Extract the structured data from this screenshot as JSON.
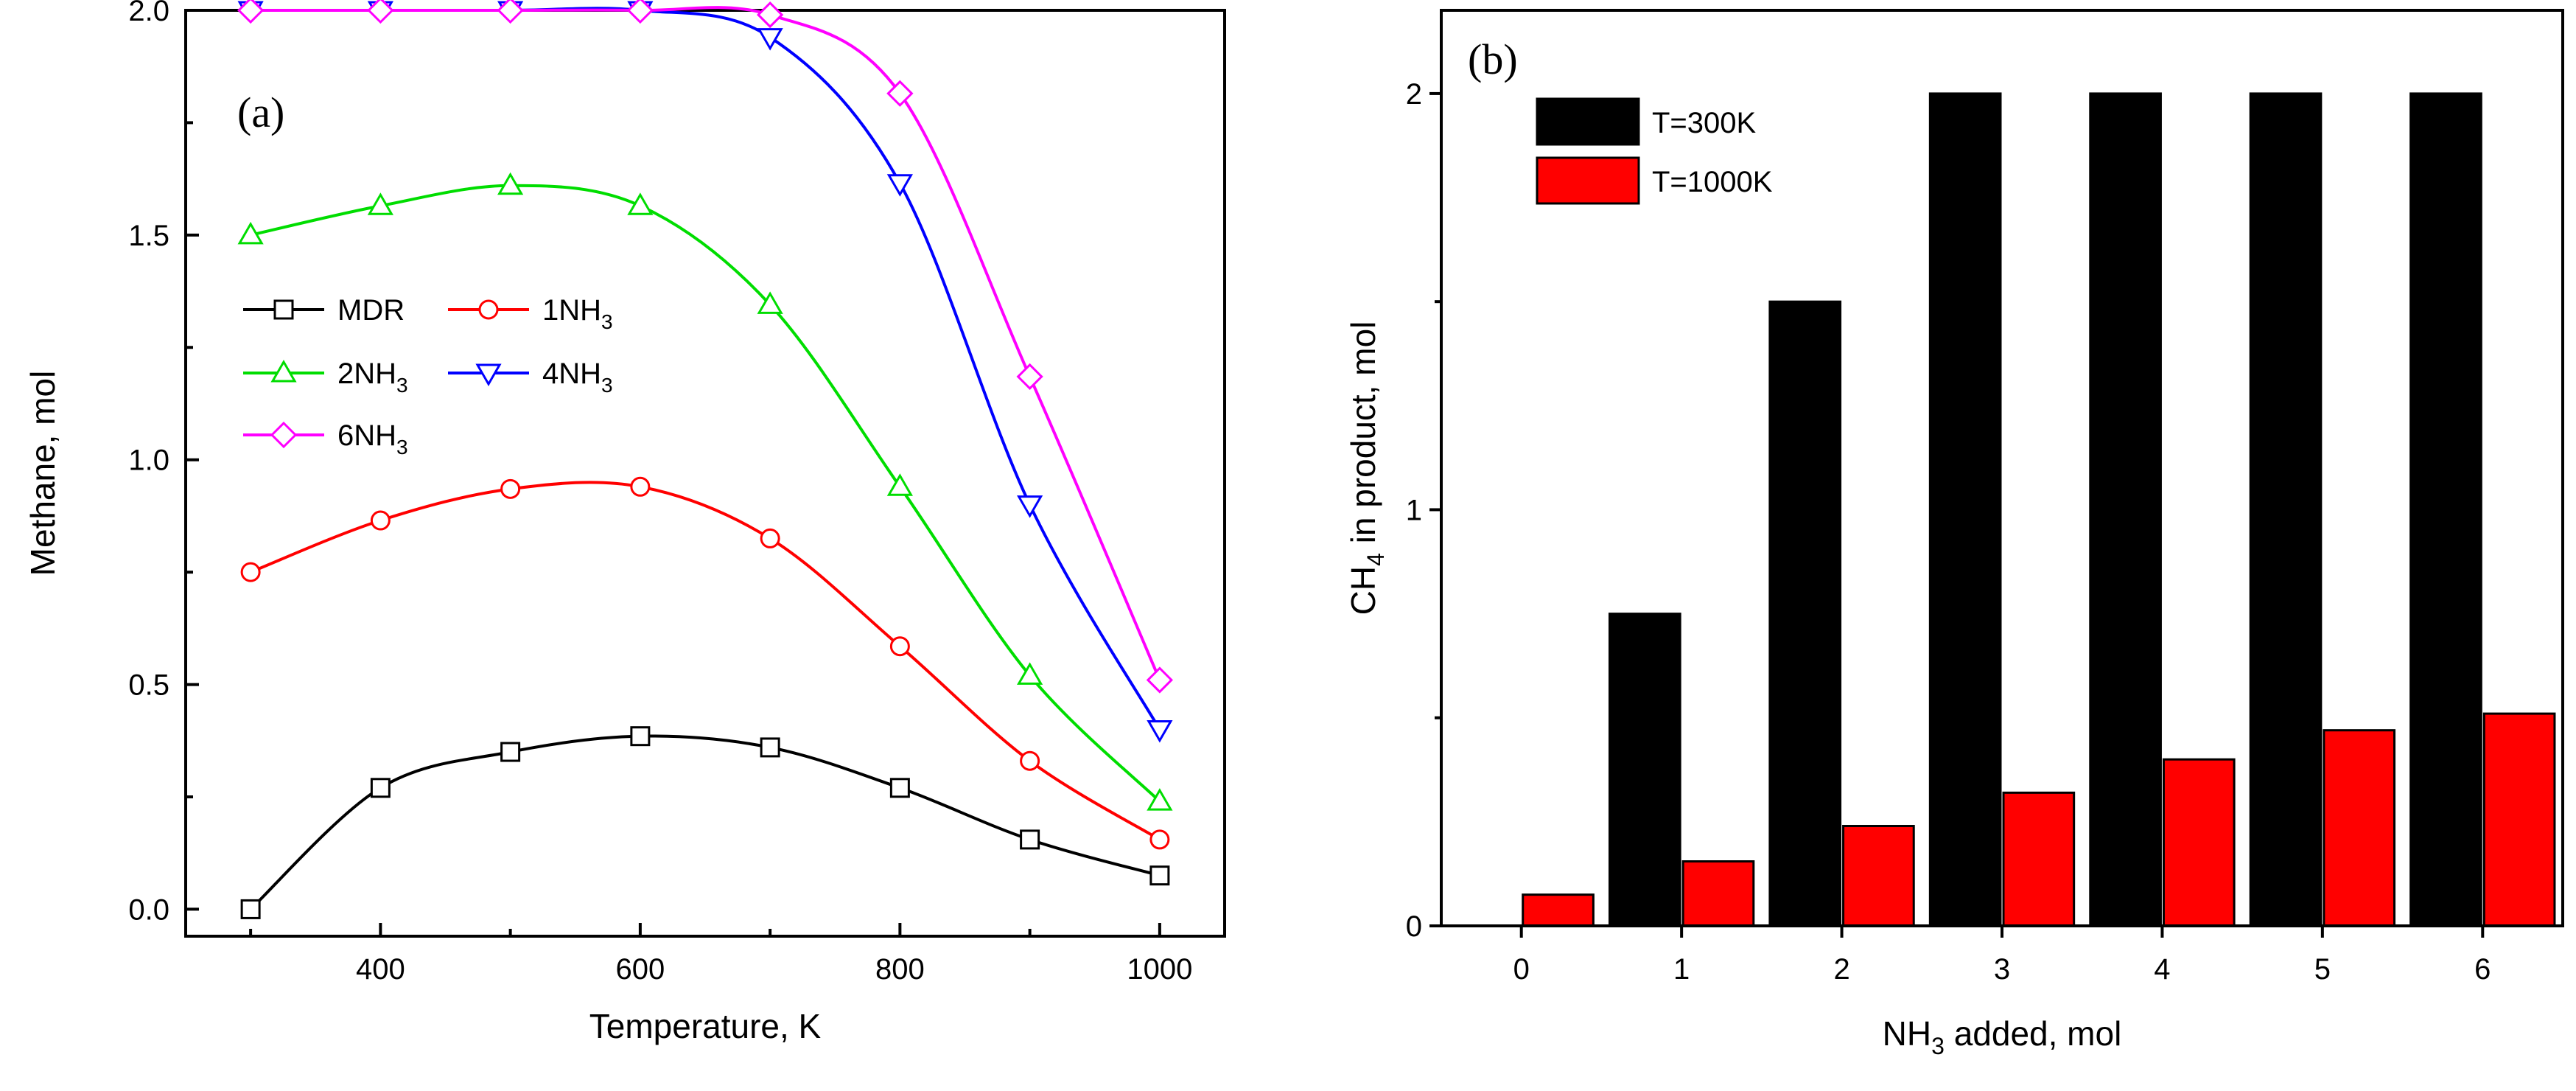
{
  "chart_data": [
    {
      "panel_label": "(a)",
      "type": "line",
      "xlabel": "Temperature, K",
      "ylabel": "Methane, mol",
      "xlim": [
        250,
        1050
      ],
      "ylim": [
        -0.06,
        2.0
      ],
      "xticks": [
        400,
        600,
        800,
        1000
      ],
      "xtick_labels": [
        "400",
        "600",
        "800",
        "1000"
      ],
      "yticks": [
        0.0,
        0.5,
        1.0,
        1.5,
        2.0
      ],
      "ytick_labels": [
        "0.0",
        "0.5",
        "1.0",
        "1.5",
        "2.0"
      ],
      "x": [
        300,
        400,
        500,
        600,
        700,
        800,
        900,
        1000
      ],
      "series": [
        {
          "name": "MDR",
          "label_main": "MDR",
          "label_sub": "",
          "color": "#000000",
          "marker": "square",
          "values": [
            0.0,
            0.27,
            0.35,
            0.385,
            0.36,
            0.27,
            0.155,
            0.075
          ]
        },
        {
          "name": "1NH3",
          "label_main": "1NH",
          "label_sub": "3",
          "color": "#ff0000",
          "marker": "circle",
          "values": [
            0.75,
            0.865,
            0.935,
            0.94,
            0.825,
            0.585,
            0.33,
            0.155
          ]
        },
        {
          "name": "2NH3",
          "label_main": "2NH",
          "label_sub": "3",
          "color": "#00dd00",
          "marker": "triangle-up",
          "values": [
            1.5,
            1.565,
            1.61,
            1.565,
            1.345,
            0.94,
            0.52,
            0.24
          ]
        },
        {
          "name": "4NH3",
          "label_main": "4NH",
          "label_sub": "3",
          "color": "#0000ff",
          "marker": "triangle-down",
          "values": [
            2.0,
            2.0,
            2.0,
            2.0,
            1.94,
            1.615,
            0.9,
            0.4
          ]
        },
        {
          "name": "6NH3",
          "label_main": "6NH",
          "label_sub": "3",
          "color": "#ff00ff",
          "marker": "diamond",
          "values": [
            2.0,
            2.0,
            2.0,
            2.0,
            1.99,
            1.815,
            1.185,
            0.51
          ]
        }
      ]
    },
    {
      "panel_label": "(b)",
      "type": "bar",
      "xlabel_main": "NH",
      "xlabel_sub": "3",
      "xlabel_rest": " added, mol",
      "ylabel_main": "CH",
      "ylabel_sub": "4",
      "ylabel_rest": " in product, mol",
      "categories": [
        "0",
        "1",
        "2",
        "3",
        "4",
        "5",
        "6"
      ],
      "ylim": [
        0,
        2.2
      ],
      "yticks": [
        0,
        1,
        2
      ],
      "ytick_labels": [
        "0",
        "1",
        "2"
      ],
      "series": [
        {
          "name": "T=300K",
          "color": "#000000",
          "values": [
            0.0,
            0.75,
            1.5,
            2.0,
            2.0,
            2.0,
            2.0
          ]
        },
        {
          "name": "T=1000K",
          "color": "#ff0000",
          "values": [
            0.075,
            0.155,
            0.24,
            0.32,
            0.4,
            0.47,
            0.51
          ]
        }
      ]
    }
  ]
}
